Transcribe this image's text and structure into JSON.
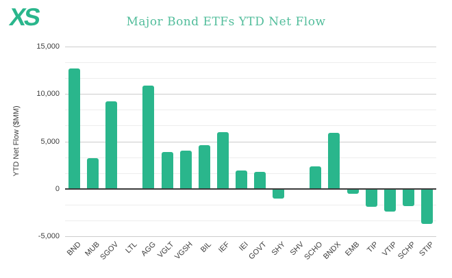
{
  "logo": {
    "text": "XS",
    "color": "#2ab68c"
  },
  "chart_data": {
    "type": "bar",
    "title": "Major Bond ETFs YTD Net Flow",
    "title_color": "#52bd9b",
    "xlabel": "",
    "ylabel": "YTD Net Flow ($MM)",
    "categories": [
      "BND",
      "MUB",
      "SGOV",
      "LTL",
      "AGG",
      "VGLT",
      "VGSH",
      "BIL",
      "IEF",
      "IEI",
      "GOVT",
      "SHY",
      "SHV",
      "SCHO",
      "BNDX",
      "EMB",
      "TIP",
      "VTIP",
      "SCHP",
      "STIP"
    ],
    "values": [
      12700,
      3200,
      9200,
      0,
      10900,
      3900,
      4000,
      4600,
      6000,
      1900,
      1800,
      -1000,
      0,
      2400,
      5900,
      -500,
      -1900,
      -2400,
      -1800,
      -3700
    ],
    "ylim": [
      -5000,
      15000
    ],
    "y_ticks": [
      {
        "value": 15000,
        "label": "15,000"
      },
      {
        "value": 10000,
        "label": "10,000"
      },
      {
        "value": 5000,
        "label": "5,000"
      },
      {
        "value": 0,
        "label": "0"
      },
      {
        "value": -5000,
        "label": "-5,000"
      }
    ],
    "minor_gridlines_between_majors": 2,
    "grid": true,
    "legend": "none",
    "bar_color": "#2ab68c",
    "axis_text_color": "#3c3c3c",
    "major_grid_color": "#cccccc",
    "minor_grid_color": "#ededed",
    "zero_line_color": "#3a3a3a"
  }
}
